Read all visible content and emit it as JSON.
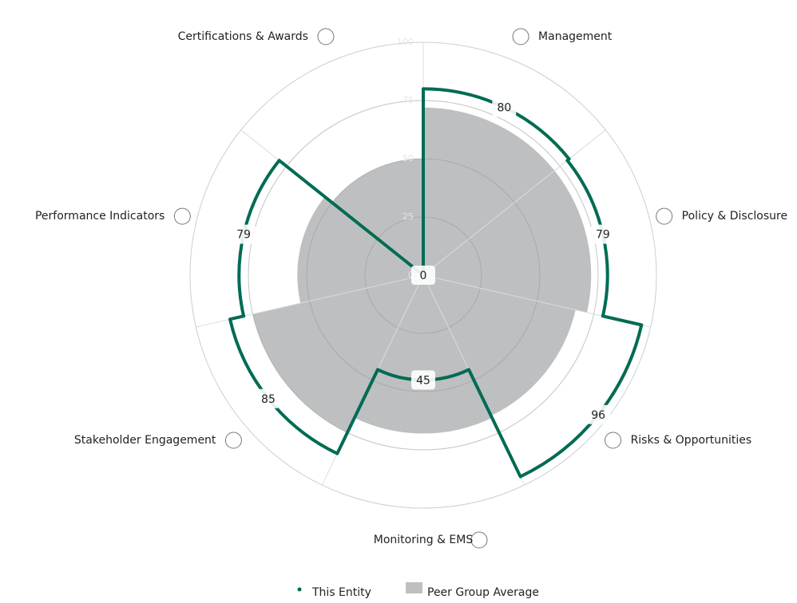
{
  "chart_data": {
    "type": "polar-column",
    "categories": [
      "Management",
      "Policy & Disclosure",
      "Risks & Opportunities",
      "Monitoring & EMS",
      "Stakeholder Engagement",
      "Performance Indicators",
      "Certifications & Awards"
    ],
    "series": [
      {
        "name": "Peer Group Average",
        "color": "#bdbfc1",
        "values": [
          72,
          72,
          67,
          68,
          75,
          54,
          50
        ]
      },
      {
        "name": "This Entity",
        "color": "#006b54",
        "values": [
          80,
          79,
          96,
          45,
          85,
          79,
          0
        ]
      }
    ],
    "ylim": [
      0,
      100
    ],
    "yticks": [
      0,
      25,
      50,
      75,
      100
    ],
    "grid": true
  }
}
